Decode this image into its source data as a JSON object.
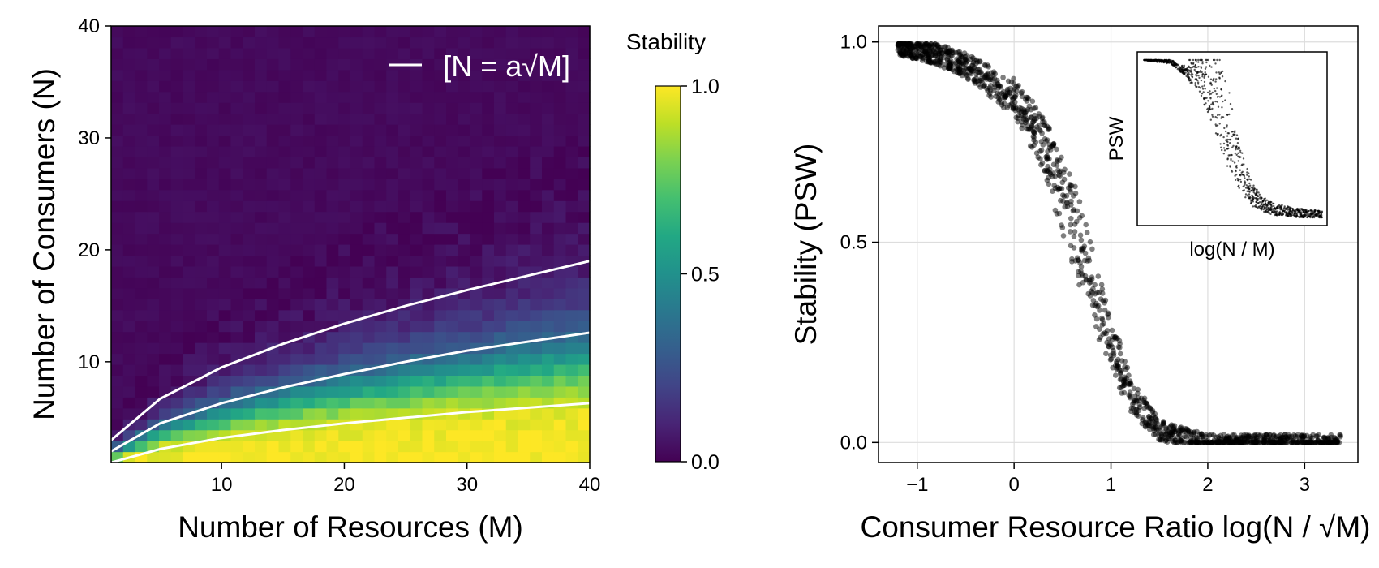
{
  "chart_data": [
    {
      "type": "heatmap",
      "xlabel": "Number of Resources (M)",
      "ylabel": "Number of Consumers (N)",
      "x_range": [
        1,
        40
      ],
      "y_range": [
        1,
        40
      ],
      "x_ticks": [
        "10",
        "20",
        "30",
        "40"
      ],
      "x_tick_values": [
        10,
        20,
        30,
        40
      ],
      "y_ticks": [
        "10",
        "20",
        "30",
        "40"
      ],
      "y_tick_values": [
        10,
        20,
        30,
        40
      ],
      "colorscale": "viridis",
      "colorbar": {
        "title": "Stability",
        "range": [
          0,
          1
        ],
        "ticks": [
          "0.0",
          "0.5",
          "1.0"
        ],
        "tick_values": [
          0,
          0.5,
          1
        ]
      },
      "legend": {
        "label": "[N = a√M]",
        "placement": "top-right",
        "color": "#ffffff"
      },
      "curves": [
        {
          "a": 1.0,
          "x": [
            1,
            5,
            10,
            15,
            20,
            25,
            30,
            35,
            40
          ],
          "y": [
            1.0,
            2.2,
            3.2,
            3.9,
            4.5,
            5.0,
            5.5,
            5.9,
            6.3
          ]
        },
        {
          "a": 2.0,
          "x": [
            1,
            5,
            10,
            15,
            20,
            25,
            30,
            35,
            40
          ],
          "y": [
            2.0,
            4.5,
            6.3,
            7.7,
            8.9,
            10.0,
            11.0,
            11.8,
            12.6
          ]
        },
        {
          "a": 3.0,
          "x": [
            1,
            5,
            10,
            15,
            20,
            25,
            30,
            35,
            40
          ],
          "y": [
            3.0,
            6.7,
            9.5,
            11.6,
            13.4,
            15.0,
            16.4,
            17.7,
            19.0
          ]
        }
      ],
      "grid": false
    },
    {
      "type": "scatter",
      "xlabel": "Consumer Resource Ratio log(N / √M)",
      "ylabel": "Stability (PSW)",
      "xlim": [
        -1.4,
        3.55
      ],
      "ylim": [
        -0.05,
        1.04
      ],
      "x_ticks": [
        "−1",
        "0",
        "1",
        "2",
        "3"
      ],
      "x_tick_values": [
        -1,
        0,
        1,
        2,
        3
      ],
      "y_ticks": [
        "0.0",
        "0.5",
        "1.0"
      ],
      "y_tick_values": [
        0,
        0.5,
        1
      ],
      "grid": true,
      "point_color": "#000000",
      "trend": {
        "x": [
          -1.2,
          -0.8,
          -0.4,
          0,
          0.3,
          0.6,
          0.9,
          1.2,
          1.5,
          2.0,
          3.4
        ],
        "y": [
          0.99,
          0.97,
          0.93,
          0.86,
          0.75,
          0.55,
          0.32,
          0.12,
          0.03,
          0.0,
          0.0
        ]
      },
      "inset": {
        "xlabel": "log(N / M)",
        "ylabel": "PSW",
        "trend": {
          "x": [
            0,
            0.15,
            0.3,
            0.4,
            0.5,
            0.6,
            0.7,
            0.85,
            1.0
          ],
          "y": [
            1.0,
            0.98,
            0.85,
            0.6,
            0.3,
            0.1,
            0.03,
            0.01,
            0.0
          ]
        }
      }
    }
  ]
}
